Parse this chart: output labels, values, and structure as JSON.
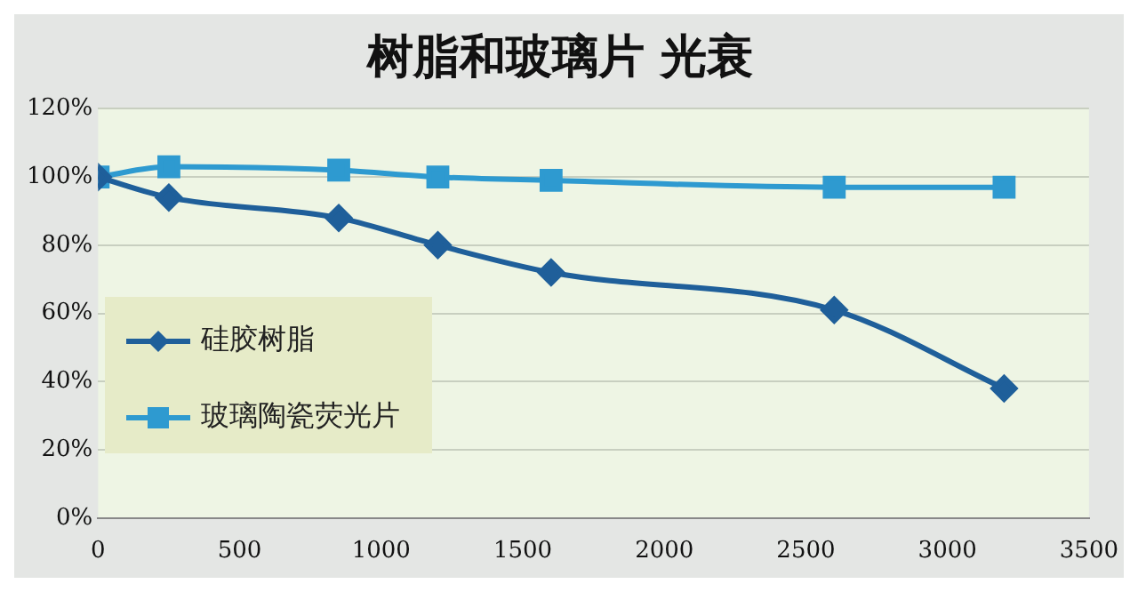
{
  "chart_data": {
    "type": "line",
    "title": "树脂和玻璃片 光衰",
    "x": [
      0,
      250,
      850,
      1200,
      1600,
      2600,
      3200
    ],
    "series": [
      {
        "name": "硅胶树脂",
        "color": "#1f5f9a",
        "marker": "diamond",
        "values": [
          100,
          94,
          88,
          80,
          72,
          61,
          38
        ]
      },
      {
        "name": "玻璃陶瓷荧光片",
        "color": "#2e9ad0",
        "marker": "square",
        "values": [
          100,
          103,
          102,
          100,
          99,
          97,
          97
        ]
      }
    ],
    "xlim": [
      0,
      3500
    ],
    "xticks": [
      0,
      500,
      1000,
      1500,
      2000,
      2500,
      3000,
      3500
    ],
    "ylim": [
      0,
      120
    ],
    "yticks": [
      {
        "value": 0,
        "label": "0%"
      },
      {
        "value": 20,
        "label": "20%"
      },
      {
        "value": 40,
        "label": "40%"
      },
      {
        "value": 60,
        "label": "60%"
      },
      {
        "value": 80,
        "label": "80%"
      },
      {
        "value": 100,
        "label": "100%"
      },
      {
        "value": 120,
        "label": "120%"
      }
    ],
    "grid": "y",
    "legend": "bottom left",
    "line_style": "solid"
  }
}
